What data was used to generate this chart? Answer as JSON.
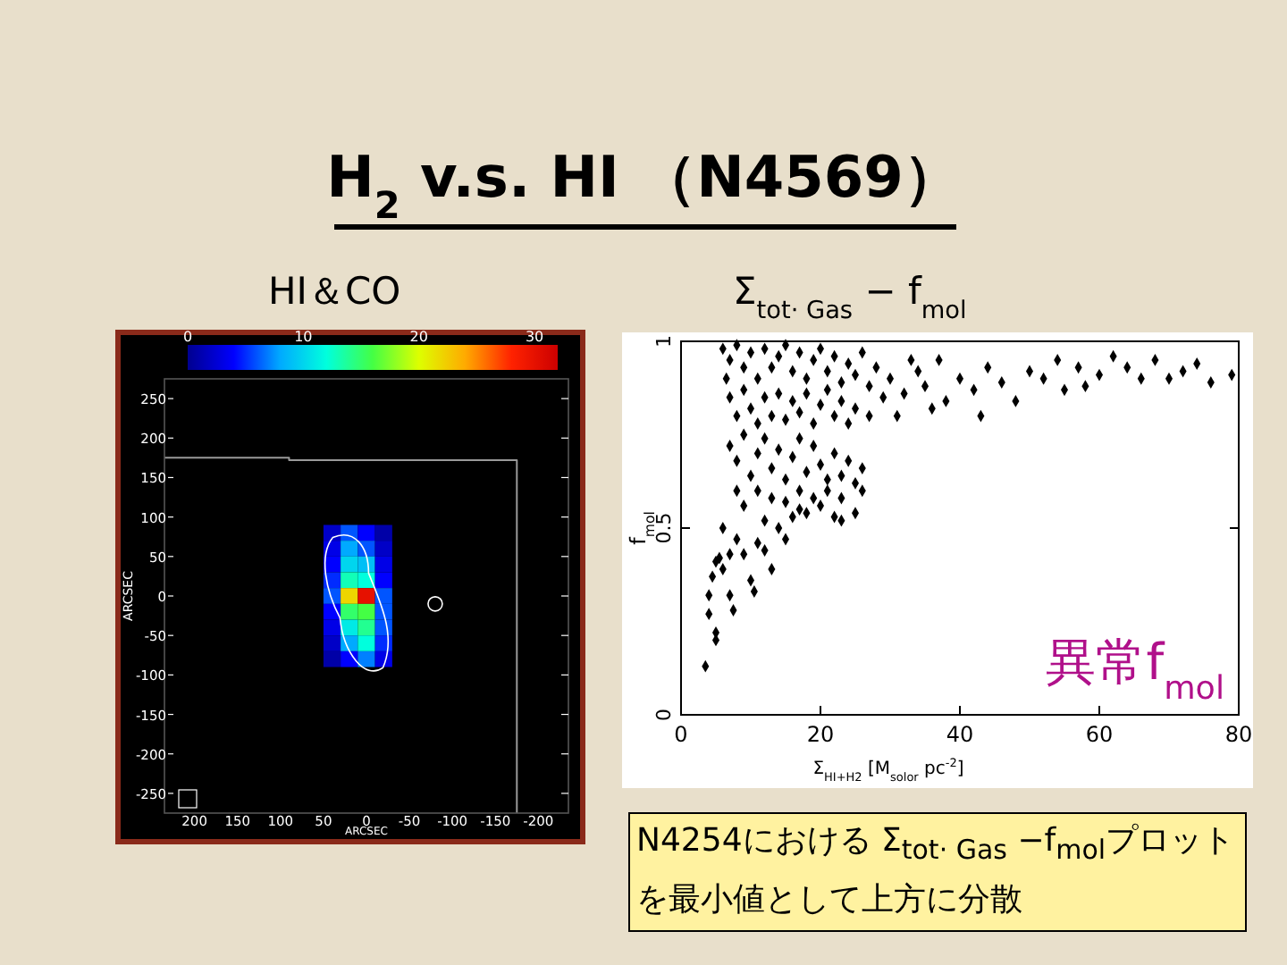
{
  "chart_data": [
    {
      "type": "scatter",
      "title": "H$_{2}$ v.s. HI （N4569）",
      "subtitle": "HI＆CO",
      "xlabel": "ARCSEC",
      "ylabel": "ARCSEC",
      "xlim": [
        235,
        -235
      ],
      "ylim": [
        -275,
        275
      ],
      "xticks": [
        200,
        150,
        100,
        50,
        0,
        -50,
        -100,
        -150,
        -200
      ],
      "yticks": [
        -250,
        -200,
        -150,
        -100,
        -50,
        0,
        50,
        100,
        150,
        200,
        250
      ],
      "clim": [
        0,
        32
      ],
      "cticks": [
        0,
        10,
        20,
        30
      ],
      "series": [
        {
          "marker": "square",
          "x": [
            40,
            20,
            0,
            -20,
            40,
            20,
            0,
            -20,
            40,
            20,
            0,
            -20,
            40,
            20,
            0,
            -20,
            40,
            20,
            0,
            -20,
            40,
            20,
            0,
            -20,
            40,
            20,
            0,
            -20,
            40,
            20,
            0,
            -20,
            40,
            20,
            0,
            -20
          ],
          "values": [
            80,
            80,
            80,
            80,
            60,
            60,
            60,
            60,
            40,
            40,
            40,
            40,
            20,
            20,
            20,
            20,
            0,
            0,
            0,
            0,
            -20,
            -20,
            -20,
            -20,
            -40,
            -40,
            -40,
            -40,
            -60,
            -60,
            -60,
            -60,
            -80,
            -80,
            -80,
            -80
          ],
          "colors": [
            "#0000c7",
            "#0055ff",
            "#0000ff",
            "#0000a7",
            "#0000e7",
            "#00aaff",
            "#0055ff",
            "#0000c7",
            "#0000ff",
            "#00d5ee",
            "#00bff6",
            "#0000e7",
            "#002bff",
            "#11ffb7",
            "#00ffdd",
            "#0000ff",
            "#0055ff",
            "#eed500",
            "#e61100",
            "#0055ff",
            "#0000ff",
            "#33ff6a",
            "#44ff44",
            "#0055ff",
            "#0000e7",
            "#00eae5",
            "#22ff91",
            "#0055ff",
            "#0000c7",
            "#00aaff",
            "#00ffdd",
            "#002bff",
            "#0000a7",
            "#0000ff",
            "#0080ff",
            "#0000e7"
          ]
        },
        {
          "type": "line",
          "color": "#999999",
          "x": [
            235,
            90,
            90,
            -175,
            -175
          ],
          "values": [
            175,
            175,
            172,
            172,
            -275
          ]
        }
      ]
    },
    {
      "type": "scatter",
      "title": "Σ$_{tot· Gas}$ − f$_{mol}$",
      "xlabel": "Σ$_{HI+H2}$ [M$_{solor}$ pc$^{-2}$]",
      "ylabel": "f$_{mol}$",
      "xlim": [
        0,
        80
      ],
      "ylim": [
        0,
        1
      ],
      "xticks": [
        0,
        20,
        40,
        60,
        80
      ],
      "yticks": [
        0,
        0.5,
        1
      ],
      "marker": "diamond",
      "grid": false,
      "annotations": [
        "異常f$_{mol}$",
        "N4254における Σ$_{tot· Gas}$ −f$_{mol}$プロットを最小値として上方に分散"
      ],
      "series": [
        {
          "color": "#000000",
          "x": [
            3.5,
            4,
            4,
            5,
            5,
            4.5,
            5,
            5.5,
            6,
            6,
            7,
            7,
            7.5,
            8,
            9,
            10,
            10.5,
            11,
            12,
            13,
            12,
            14,
            15,
            16,
            17,
            18,
            20,
            22,
            23,
            25,
            26,
            6,
            7,
            6.5,
            8,
            9,
            10,
            11,
            12,
            13,
            14,
            15,
            16,
            17,
            18,
            19,
            20,
            21,
            22,
            23,
            24,
            25,
            26,
            27,
            28,
            7,
            8,
            9,
            10,
            11,
            12,
            13,
            14,
            15,
            16,
            17,
            18,
            19,
            20,
            21,
            22,
            23,
            24,
            25,
            27,
            29,
            7,
            8,
            9,
            10,
            11,
            12,
            13,
            14,
            15,
            16,
            17,
            18,
            19,
            20,
            21,
            22,
            23,
            24,
            25,
            26,
            8,
            9,
            11,
            13,
            15,
            17,
            19,
            21,
            23,
            30,
            32,
            34,
            35,
            37,
            38,
            40,
            42,
            43,
            44,
            46,
            48,
            50,
            52,
            54,
            55,
            57,
            58,
            60,
            62,
            64,
            66,
            68,
            70,
            72,
            74,
            76,
            79,
            36,
            31,
            33
          ],
          "values": [
            0.13,
            0.27,
            0.32,
            0.2,
            0.22,
            0.37,
            0.41,
            0.42,
            0.39,
            0.5,
            0.43,
            0.32,
            0.28,
            0.47,
            0.43,
            0.36,
            0.33,
            0.46,
            0.44,
            0.39,
            0.52,
            0.5,
            0.47,
            0.53,
            0.55,
            0.54,
            0.56,
            0.53,
            0.52,
            0.54,
            0.6,
            0.98,
            0.95,
            0.9,
            0.99,
            0.93,
            0.97,
            0.9,
            0.98,
            0.93,
            0.96,
            0.99,
            0.92,
            0.97,
            0.9,
            0.95,
            0.98,
            0.92,
            0.96,
            0.89,
            0.94,
            0.91,
            0.97,
            0.88,
            0.93,
            0.85,
            0.8,
            0.87,
            0.82,
            0.78,
            0.85,
            0.8,
            0.86,
            0.79,
            0.84,
            0.81,
            0.86,
            0.78,
            0.83,
            0.87,
            0.8,
            0.84,
            0.78,
            0.82,
            0.8,
            0.85,
            0.72,
            0.68,
            0.75,
            0.64,
            0.7,
            0.74,
            0.66,
            0.71,
            0.63,
            0.69,
            0.74,
            0.65,
            0.72,
            0.67,
            0.6,
            0.7,
            0.64,
            0.68,
            0.62,
            0.66,
            0.6,
            0.56,
            0.6,
            0.58,
            0.57,
            0.6,
            0.58,
            0.63,
            0.58,
            0.9,
            0.86,
            0.92,
            0.88,
            0.95,
            0.84,
            0.9,
            0.87,
            0.8,
            0.93,
            0.89,
            0.84,
            0.92,
            0.9,
            0.95,
            0.87,
            0.93,
            0.88,
            0.91,
            0.96,
            0.93,
            0.9,
            0.95,
            0.9,
            0.92,
            0.94,
            0.89,
            0.91,
            0.82,
            0.8,
            0.95
          ]
        }
      ]
    }
  ]
}
